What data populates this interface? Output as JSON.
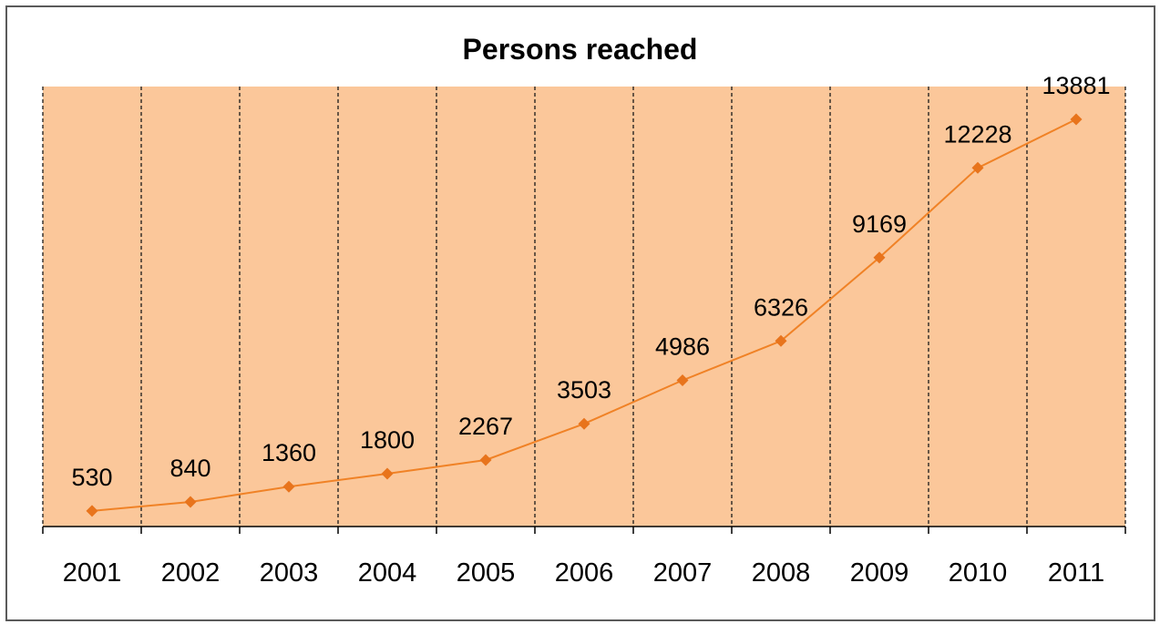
{
  "chart_data": {
    "type": "line",
    "title": "Persons reached",
    "xlabel": "",
    "ylabel": "",
    "categories": [
      "2001",
      "2002",
      "2003",
      "2004",
      "2005",
      "2006",
      "2007",
      "2008",
      "2009",
      "2010",
      "2011"
    ],
    "series": [
      {
        "values": [
          530,
          840,
          1360,
          1800,
          2267,
          3503,
          4986,
          6326,
          9169,
          12228,
          13881
        ]
      }
    ],
    "ylim": [
      0,
      15000
    ],
    "grid": "vertical dashed lines between categories",
    "legend": "none",
    "colors": {
      "plot_background": "#FBC79A",
      "line": "#F08226",
      "marker": "#E8741C",
      "gridline": "#1a1a1a"
    }
  }
}
